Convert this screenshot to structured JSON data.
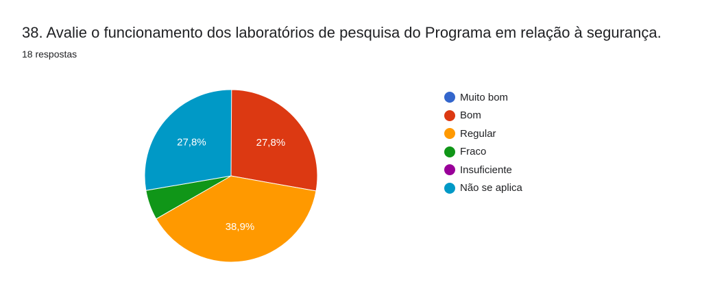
{
  "question": {
    "title": "38. Avalie o funcionamento dos laboratórios de pesquisa do Programa em relação à segurança.",
    "responses": "18 respostas"
  },
  "chart_data": {
    "type": "pie",
    "title": "38. Avalie o funcionamento dos laboratórios de pesquisa do Programa em relação à segurança.",
    "subtitle": "18 respostas",
    "legend_position": "right",
    "slices": [
      {
        "label": "Muito bom",
        "percent": 0,
        "color": "#3366cc"
      },
      {
        "label": "Bom",
        "percent": 27.8,
        "percent_label": "27,8%",
        "color": "#dc3912"
      },
      {
        "label": "Regular",
        "percent": 38.9,
        "percent_label": "38,9%",
        "color": "#ff9900"
      },
      {
        "label": "Fraco",
        "percent": 5.6,
        "color": "#109618"
      },
      {
        "label": "Insuficiente",
        "percent": 0,
        "color": "#990099"
      },
      {
        "label": "Não se aplica",
        "percent": 27.8,
        "percent_label": "27,8%",
        "color": "#0099c6"
      }
    ]
  }
}
